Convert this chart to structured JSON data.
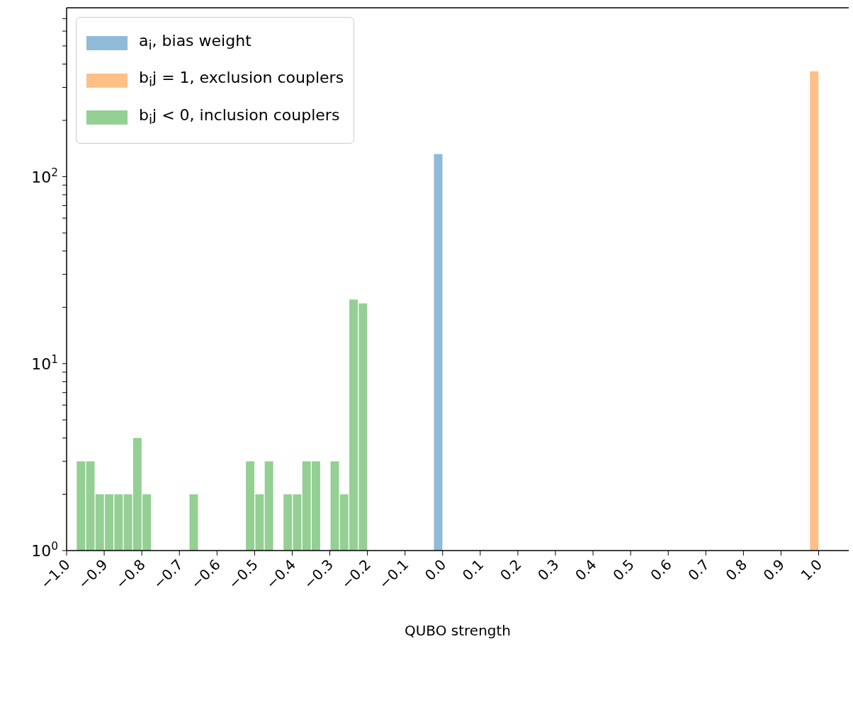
{
  "chart_data": {
    "type": "histogram",
    "xlabel": "QUBO strength",
    "log": "y",
    "legend": "top left",
    "xlim": [
      -1.0,
      1.08
    ],
    "ylim": [
      1,
      800
    ],
    "xticks": [
      {
        "value": -1.0,
        "label": "−1.0"
      },
      {
        "value": -0.9,
        "label": "−0.9"
      },
      {
        "value": -0.8,
        "label": "−0.8"
      },
      {
        "value": -0.7,
        "label": "−0.7"
      },
      {
        "value": -0.6,
        "label": "−0.6"
      },
      {
        "value": -0.5,
        "label": "−0.5"
      },
      {
        "value": -0.4,
        "label": "−0.4"
      },
      {
        "value": -0.3,
        "label": "−0.3"
      },
      {
        "value": -0.2,
        "label": "−0.2"
      },
      {
        "value": -0.1,
        "label": "−0.1"
      },
      {
        "value": 0,
        "label": "0.0"
      },
      {
        "value": 0.1,
        "label": "0.1"
      },
      {
        "value": 0.2,
        "label": "0.2"
      },
      {
        "value": 0.3,
        "label": "0.3"
      },
      {
        "value": 0.4,
        "label": "0.4"
      },
      {
        "value": 0.5,
        "label": "0.5"
      },
      {
        "value": 0.6,
        "label": "0.6"
      },
      {
        "value": 0.7,
        "label": "0.7"
      },
      {
        "value": 0.8,
        "label": "0.8"
      },
      {
        "value": 0.9,
        "label": "0.9"
      },
      {
        "value": 1.0,
        "label": "1.0"
      }
    ],
    "yticks": [
      {
        "value": 1,
        "label": "10$^{0}$"
      },
      {
        "value": 2,
        "label": null
      },
      {
        "value": 3,
        "label": null
      },
      {
        "value": 4,
        "label": null
      },
      {
        "value": 5,
        "label": null
      },
      {
        "value": 6,
        "label": null
      },
      {
        "value": 7,
        "label": null
      },
      {
        "value": 8,
        "label": null
      },
      {
        "value": 9,
        "label": null
      },
      {
        "value": 10,
        "label": "10$^{1}$"
      },
      {
        "value": 20,
        "label": null
      },
      {
        "value": 30,
        "label": null
      },
      {
        "value": 40,
        "label": null
      },
      {
        "value": 50,
        "label": null
      },
      {
        "value": 60,
        "label": null
      },
      {
        "value": 70,
        "label": null
      },
      {
        "value": 80,
        "label": null
      },
      {
        "value": 90,
        "label": null
      },
      {
        "value": 100,
        "label": "10$^{2}$"
      },
      {
        "value": 200,
        "label": null
      },
      {
        "value": 300,
        "label": null
      },
      {
        "value": 400,
        "label": null
      },
      {
        "value": 500,
        "label": null
      },
      {
        "value": 600,
        "label": null
      },
      {
        "value": 700,
        "label": null
      }
    ],
    "bins": [
      -0.975,
      -0.95,
      -0.925,
      -0.9,
      -0.875,
      -0.85,
      -0.825,
      -0.8,
      -0.775,
      -0.75,
      -0.725,
      -0.7,
      -0.675,
      -0.65,
      -0.625,
      -0.6,
      -0.575,
      -0.55,
      -0.525,
      -0.5,
      -0.475,
      -0.45,
      -0.425,
      -0.4,
      -0.375,
      -0.35,
      -0.325,
      -0.3,
      -0.275,
      -0.25,
      -0.225,
      -0.2,
      -0.175,
      -0.15,
      -0.125,
      -0.1,
      -0.075,
      -0.05,
      -0.025,
      0,
      0.025,
      0.05,
      0.075,
      0.1,
      0.125,
      0.15,
      0.175,
      0.2,
      0.225,
      0.25,
      0.275,
      0.3,
      0.325,
      0.35,
      0.375,
      0.4,
      0.425,
      0.45,
      0.475,
      0.5,
      0.525,
      0.55,
      0.575,
      0.6,
      0.625,
      0.65,
      0.675,
      0.7,
      0.725,
      0.75,
      0.775,
      0.8,
      0.825,
      0.85,
      0.875,
      0.9,
      0.925,
      0.95,
      0.975,
      1.0
    ],
    "series": [
      {
        "name": "a$_{i}$, bias weight",
        "color": "#8fbbd9",
        "values": [
          null,
          null,
          null,
          null,
          null,
          null,
          null,
          null,
          null,
          null,
          null,
          null,
          null,
          null,
          null,
          null,
          null,
          null,
          null,
          null,
          null,
          null,
          null,
          null,
          null,
          null,
          null,
          null,
          null,
          null,
          null,
          null,
          null,
          null,
          null,
          null,
          null,
          null,
          132,
          null,
          null,
          null,
          null,
          null,
          null,
          null,
          null,
          null,
          null,
          null,
          null,
          null,
          null,
          null,
          null,
          null,
          null,
          null,
          null,
          null,
          null,
          null,
          null,
          null,
          null,
          null,
          null,
          null,
          null,
          null,
          null,
          null,
          null,
          null,
          null,
          null,
          null,
          null,
          null
        ]
      },
      {
        "name": "b$_{i}$j = 1, exclusion couplers",
        "color": "#ffbf86",
        "values": [
          null,
          null,
          null,
          null,
          null,
          null,
          null,
          null,
          null,
          null,
          null,
          null,
          null,
          null,
          null,
          null,
          null,
          null,
          null,
          null,
          null,
          null,
          null,
          null,
          null,
          null,
          null,
          null,
          null,
          null,
          null,
          null,
          null,
          null,
          null,
          null,
          null,
          null,
          null,
          null,
          null,
          null,
          null,
          null,
          null,
          null,
          null,
          null,
          null,
          null,
          null,
          null,
          null,
          null,
          null,
          null,
          null,
          null,
          null,
          null,
          null,
          null,
          null,
          null,
          null,
          null,
          null,
          null,
          null,
          null,
          null,
          null,
          null,
          null,
          null,
          null,
          null,
          null,
          366
        ]
      },
      {
        "name": "b$_{i}$j < 0, inclusion couplers",
        "color": "#94cf94",
        "values": [
          3,
          3,
          2,
          2,
          2,
          2,
          4,
          2,
          null,
          null,
          null,
          null,
          2,
          null,
          null,
          null,
          null,
          null,
          3,
          2,
          3,
          null,
          2,
          2,
          3,
          3,
          null,
          3,
          2,
          22,
          21,
          null,
          null,
          null,
          null,
          null,
          null,
          null,
          null,
          null,
          null,
          null,
          null,
          null,
          null,
          null,
          null,
          null,
          null,
          null,
          null,
          null,
          null,
          null,
          null,
          null,
          null,
          null,
          null,
          null,
          null,
          null,
          null,
          null,
          null,
          null,
          null,
          null,
          null,
          null,
          null,
          null,
          null,
          null,
          null,
          null,
          null,
          null,
          null
        ]
      }
    ]
  }
}
